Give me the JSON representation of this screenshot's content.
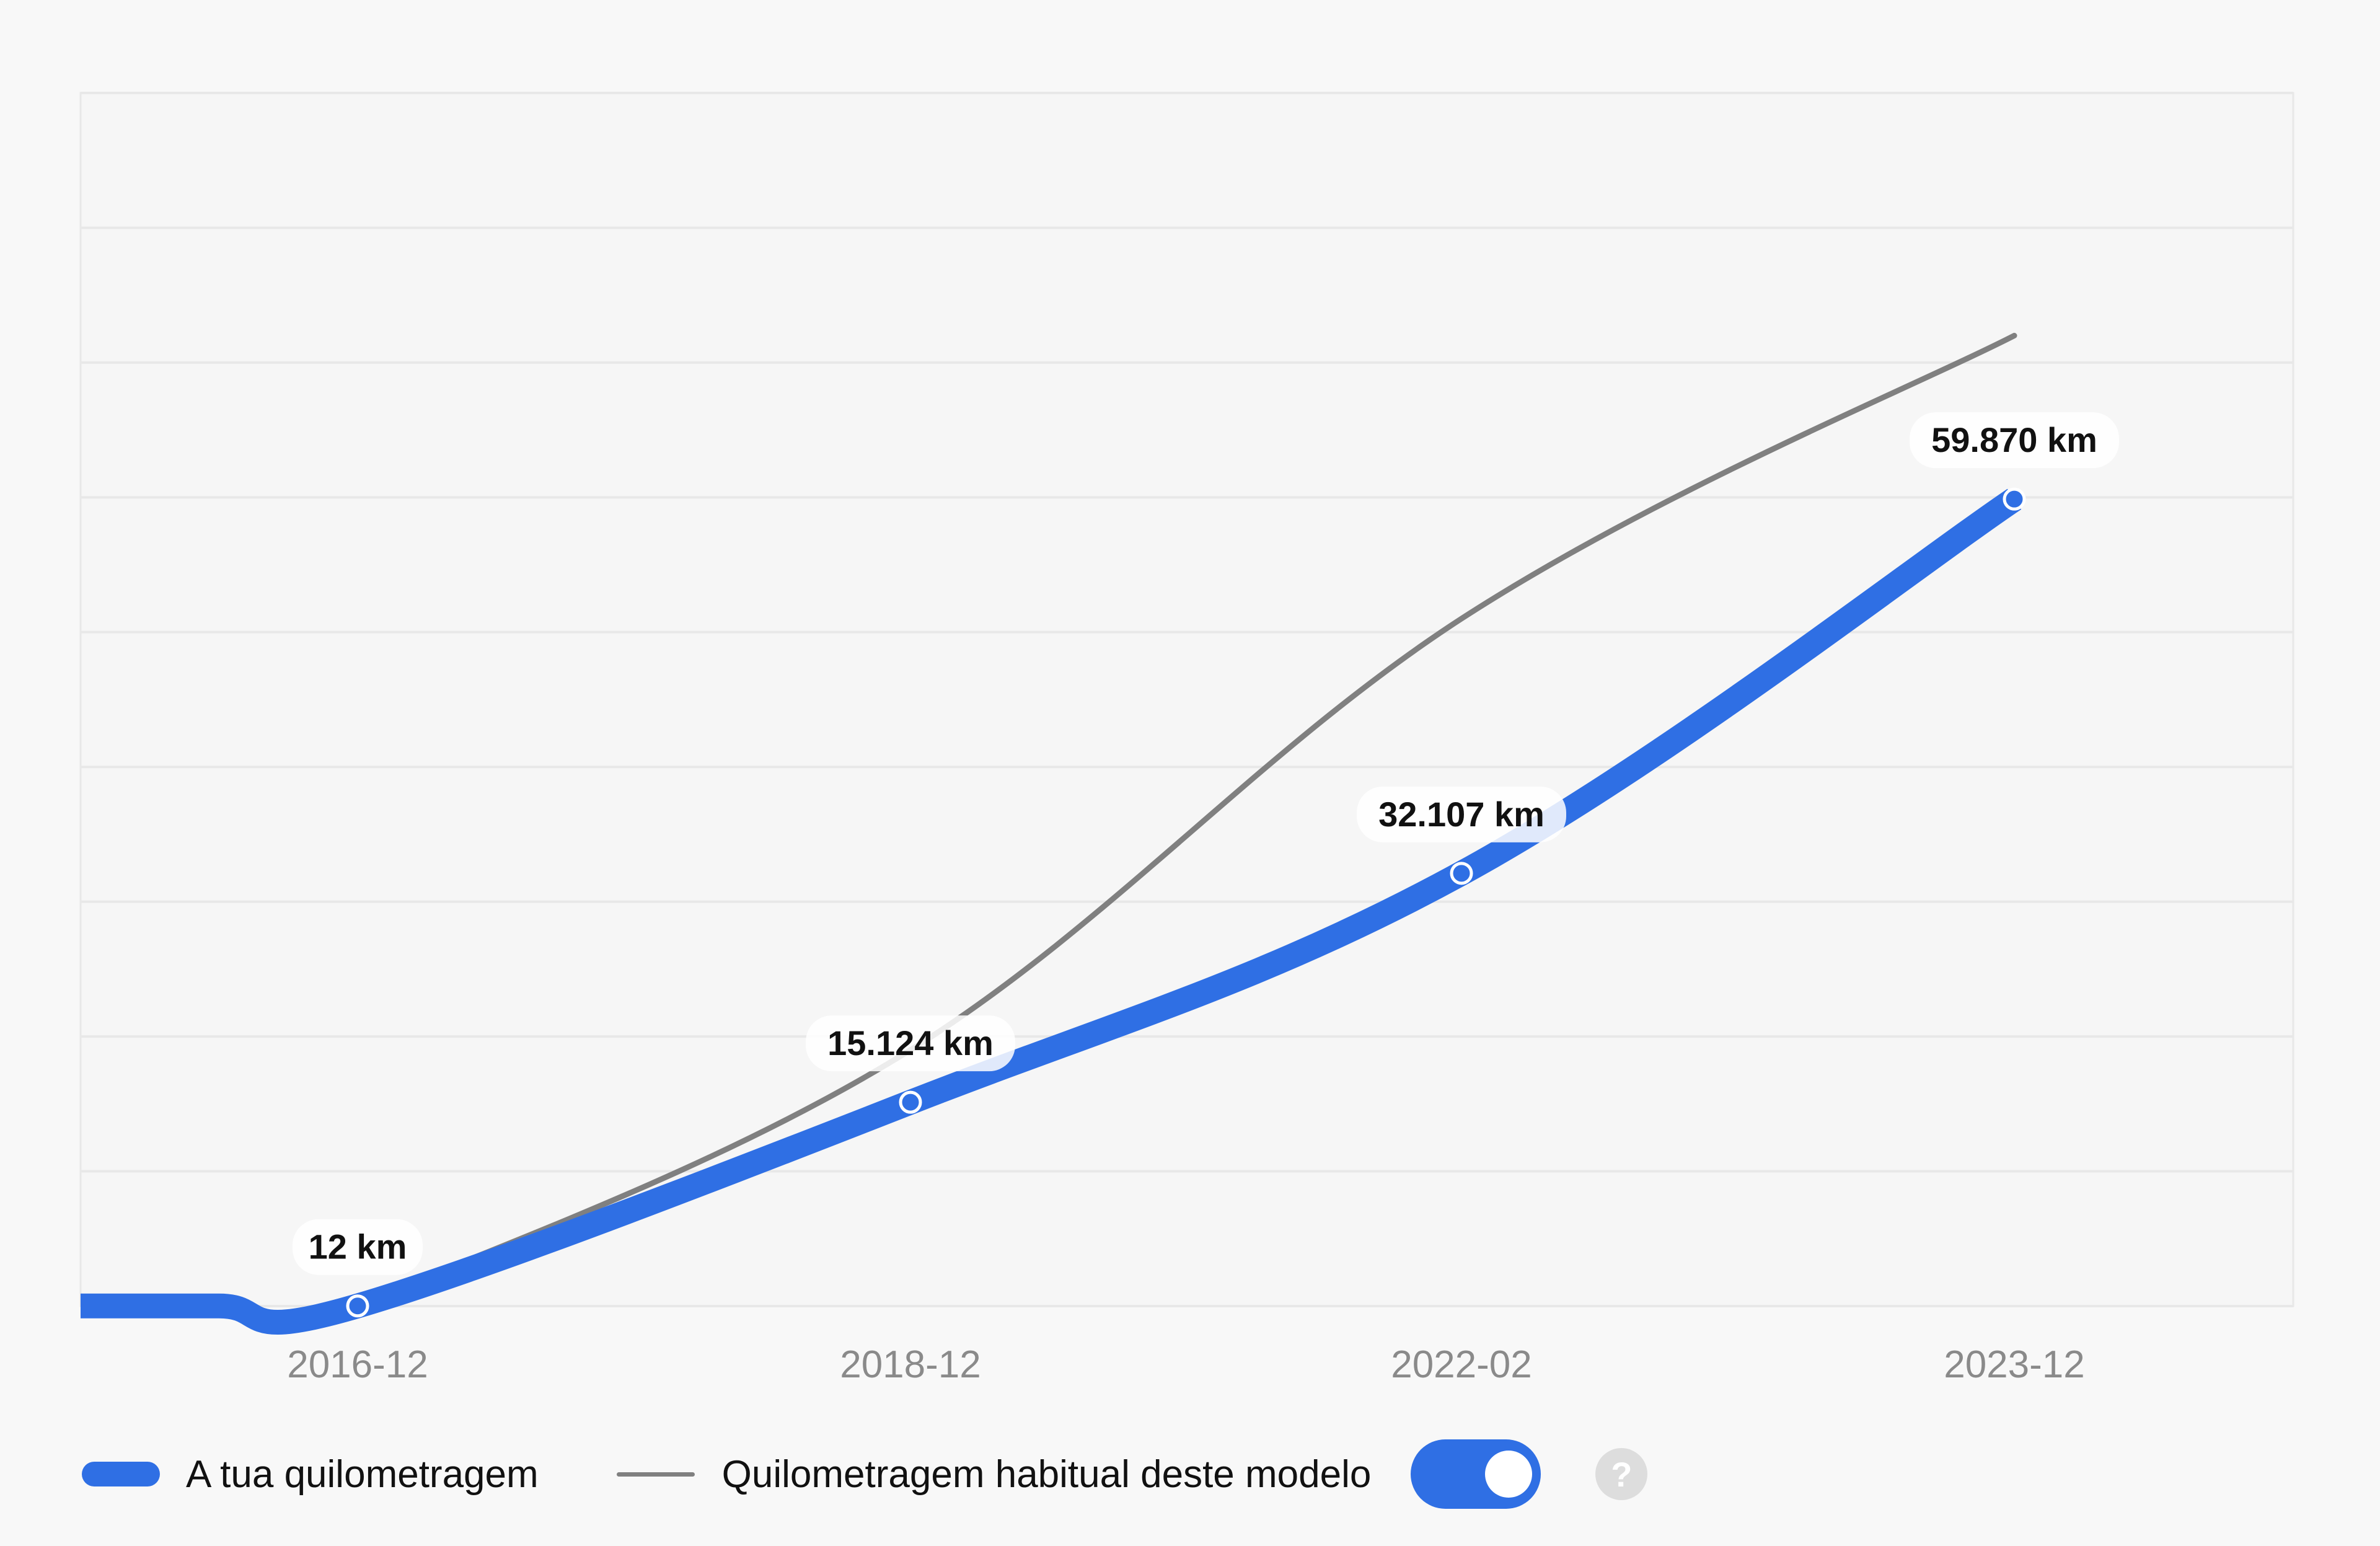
{
  "colors": {
    "background": "#f8f8f8",
    "plot_background": "#f6f6f6",
    "gridline": "#e8e8e8",
    "primary_series": "#2f6fe4",
    "secondary_series": "#808080",
    "tick_text": "#8a8a8a",
    "label_text": "#111111",
    "help_icon": "#dddddd"
  },
  "chart_data": {
    "type": "line",
    "title": "",
    "xlabel": "",
    "ylabel": "",
    "categories": [
      "2016-12",
      "2018-12",
      "2022-02",
      "2023-12"
    ],
    "ylim": [
      0,
      90000
    ],
    "grid": true,
    "y_tick_labels_shown": false,
    "legend_position": "bottom-left",
    "series": [
      {
        "name": "A tua quilometragem",
        "color": "#2f6fe4",
        "values": [
          12,
          15124,
          32107,
          59870
        ],
        "data_labels": [
          "12 km",
          "15.124 km",
          "32.107 km",
          "59.870 km"
        ],
        "extends_from_left_edge": true
      },
      {
        "name": "Quilometragem habitual deste modelo",
        "color": "#808080",
        "values": [
          0,
          19000,
          51000,
          72000
        ]
      }
    ]
  },
  "legend": {
    "items": [
      {
        "label": "A tua quilometragem",
        "color": "#2f6fe4",
        "style": "thick"
      },
      {
        "label": "Quilometragem habitual deste modelo",
        "color": "#808080",
        "style": "thin"
      }
    ],
    "toggle_on": true,
    "help_icon": "question-mark-icon",
    "help_text": "?"
  }
}
